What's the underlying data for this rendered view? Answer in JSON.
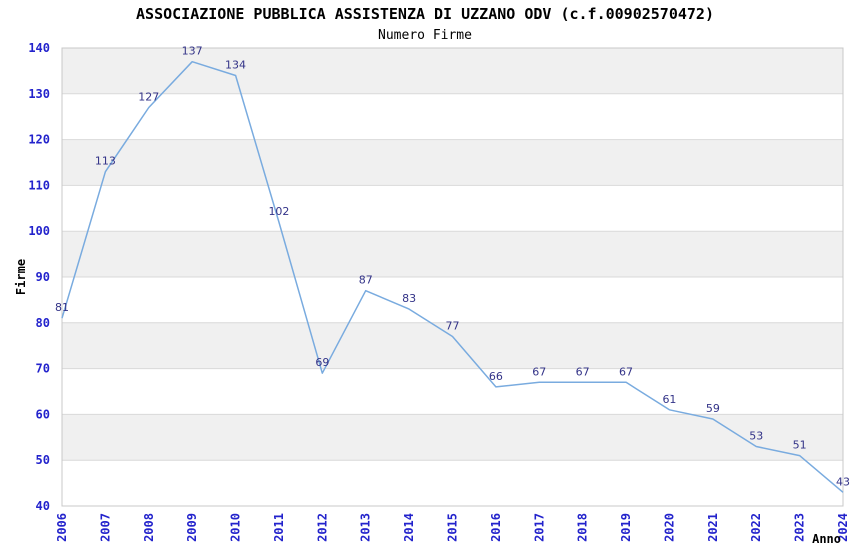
{
  "chart_data": {
    "type": "line",
    "title": "ASSOCIAZIONE PUBBLICA ASSISTENZA DI UZZANO ODV (c.f.00902570472)",
    "subtitle": "Numero Firme",
    "xlabel": "Anno",
    "ylabel": "Firme",
    "categories": [
      "2006",
      "2007",
      "2008",
      "2009",
      "2010",
      "2011",
      "2012",
      "2013",
      "2014",
      "2015",
      "2016",
      "2017",
      "2018",
      "2019",
      "2020",
      "2021",
      "2022",
      "2023",
      "2024"
    ],
    "values": [
      81,
      113,
      127,
      137,
      134,
      102,
      69,
      87,
      83,
      77,
      66,
      67,
      67,
      67,
      61,
      59,
      53,
      51,
      43
    ],
    "ylim": [
      40,
      140
    ],
    "ytick_step": 10,
    "grid": true,
    "legend": "none",
    "x_tick_rotation": 90,
    "colors": {
      "line": "#79abdf",
      "data_label": "#333388",
      "tick_label": "#2323cc",
      "band": "#f0f0f0",
      "gridline": "#d9d9d9",
      "frame": "#c8c8c8",
      "title": "#000000",
      "background": "#ffffff"
    }
  }
}
